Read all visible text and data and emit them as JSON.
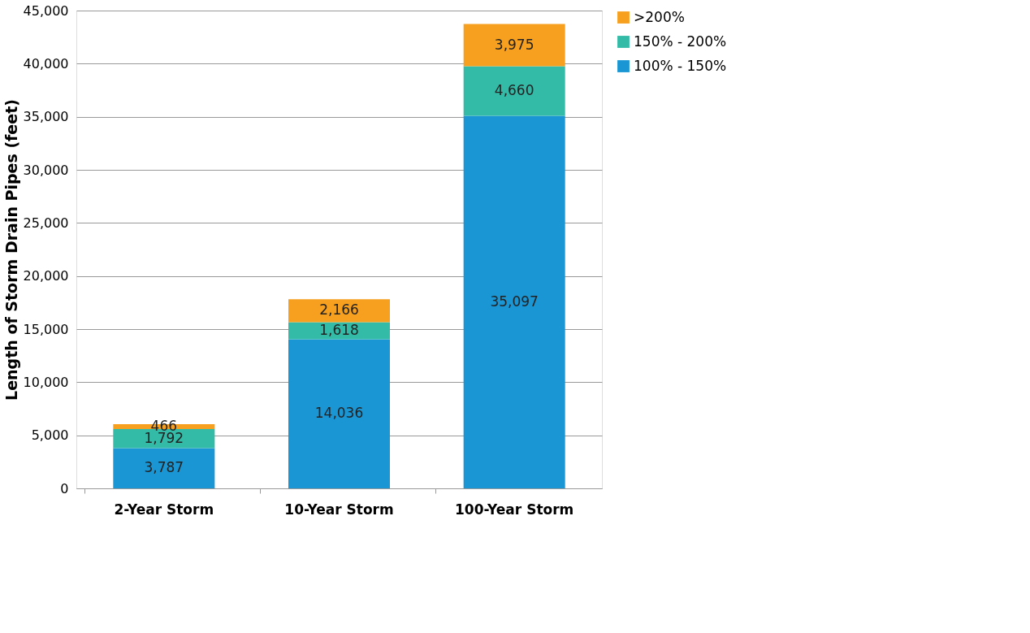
{
  "chart_data": {
    "type": "bar",
    "stacked": true,
    "ylabel": "Length of Storm Drain Pipes (feet)",
    "categories": [
      "2-Year Storm",
      "10-Year Storm",
      "100-Year Storm"
    ],
    "series": [
      {
        "name": "100% - 150%",
        "color": "#1a96d4",
        "values": [
          3787,
          14036,
          35097
        ],
        "value_labels": [
          "3,787",
          "14,036",
          "35,097"
        ]
      },
      {
        "name": "150% - 200%",
        "color": "#33bba8",
        "values": [
          1792,
          1618,
          4660
        ],
        "value_labels": [
          "1,792",
          "1,618",
          "4,660"
        ]
      },
      {
        "name": ">200%",
        "color": "#f7a01f",
        "values": [
          466,
          2166,
          3975
        ],
        "value_labels": [
          "466",
          "2,166",
          "3,975"
        ]
      }
    ],
    "ylim": [
      0,
      45000
    ],
    "yticks": [
      0,
      {
        "value": 5000,
        "label": "5,000"
      },
      {
        "value": 10000,
        "label": "10,000"
      },
      {
        "value": 15000,
        "label": "15,000"
      },
      {
        "value": 20000,
        "label": "20,000"
      },
      {
        "value": 25000,
        "label": "25,000"
      },
      {
        "value": 30000,
        "label": "30,000"
      },
      {
        "value": 35000,
        "label": "35,000"
      },
      {
        "value": 40000,
        "label": "40,000"
      },
      {
        "value": 45000,
        "label": "45,000"
      }
    ],
    "grid": "y",
    "legend": "right"
  }
}
